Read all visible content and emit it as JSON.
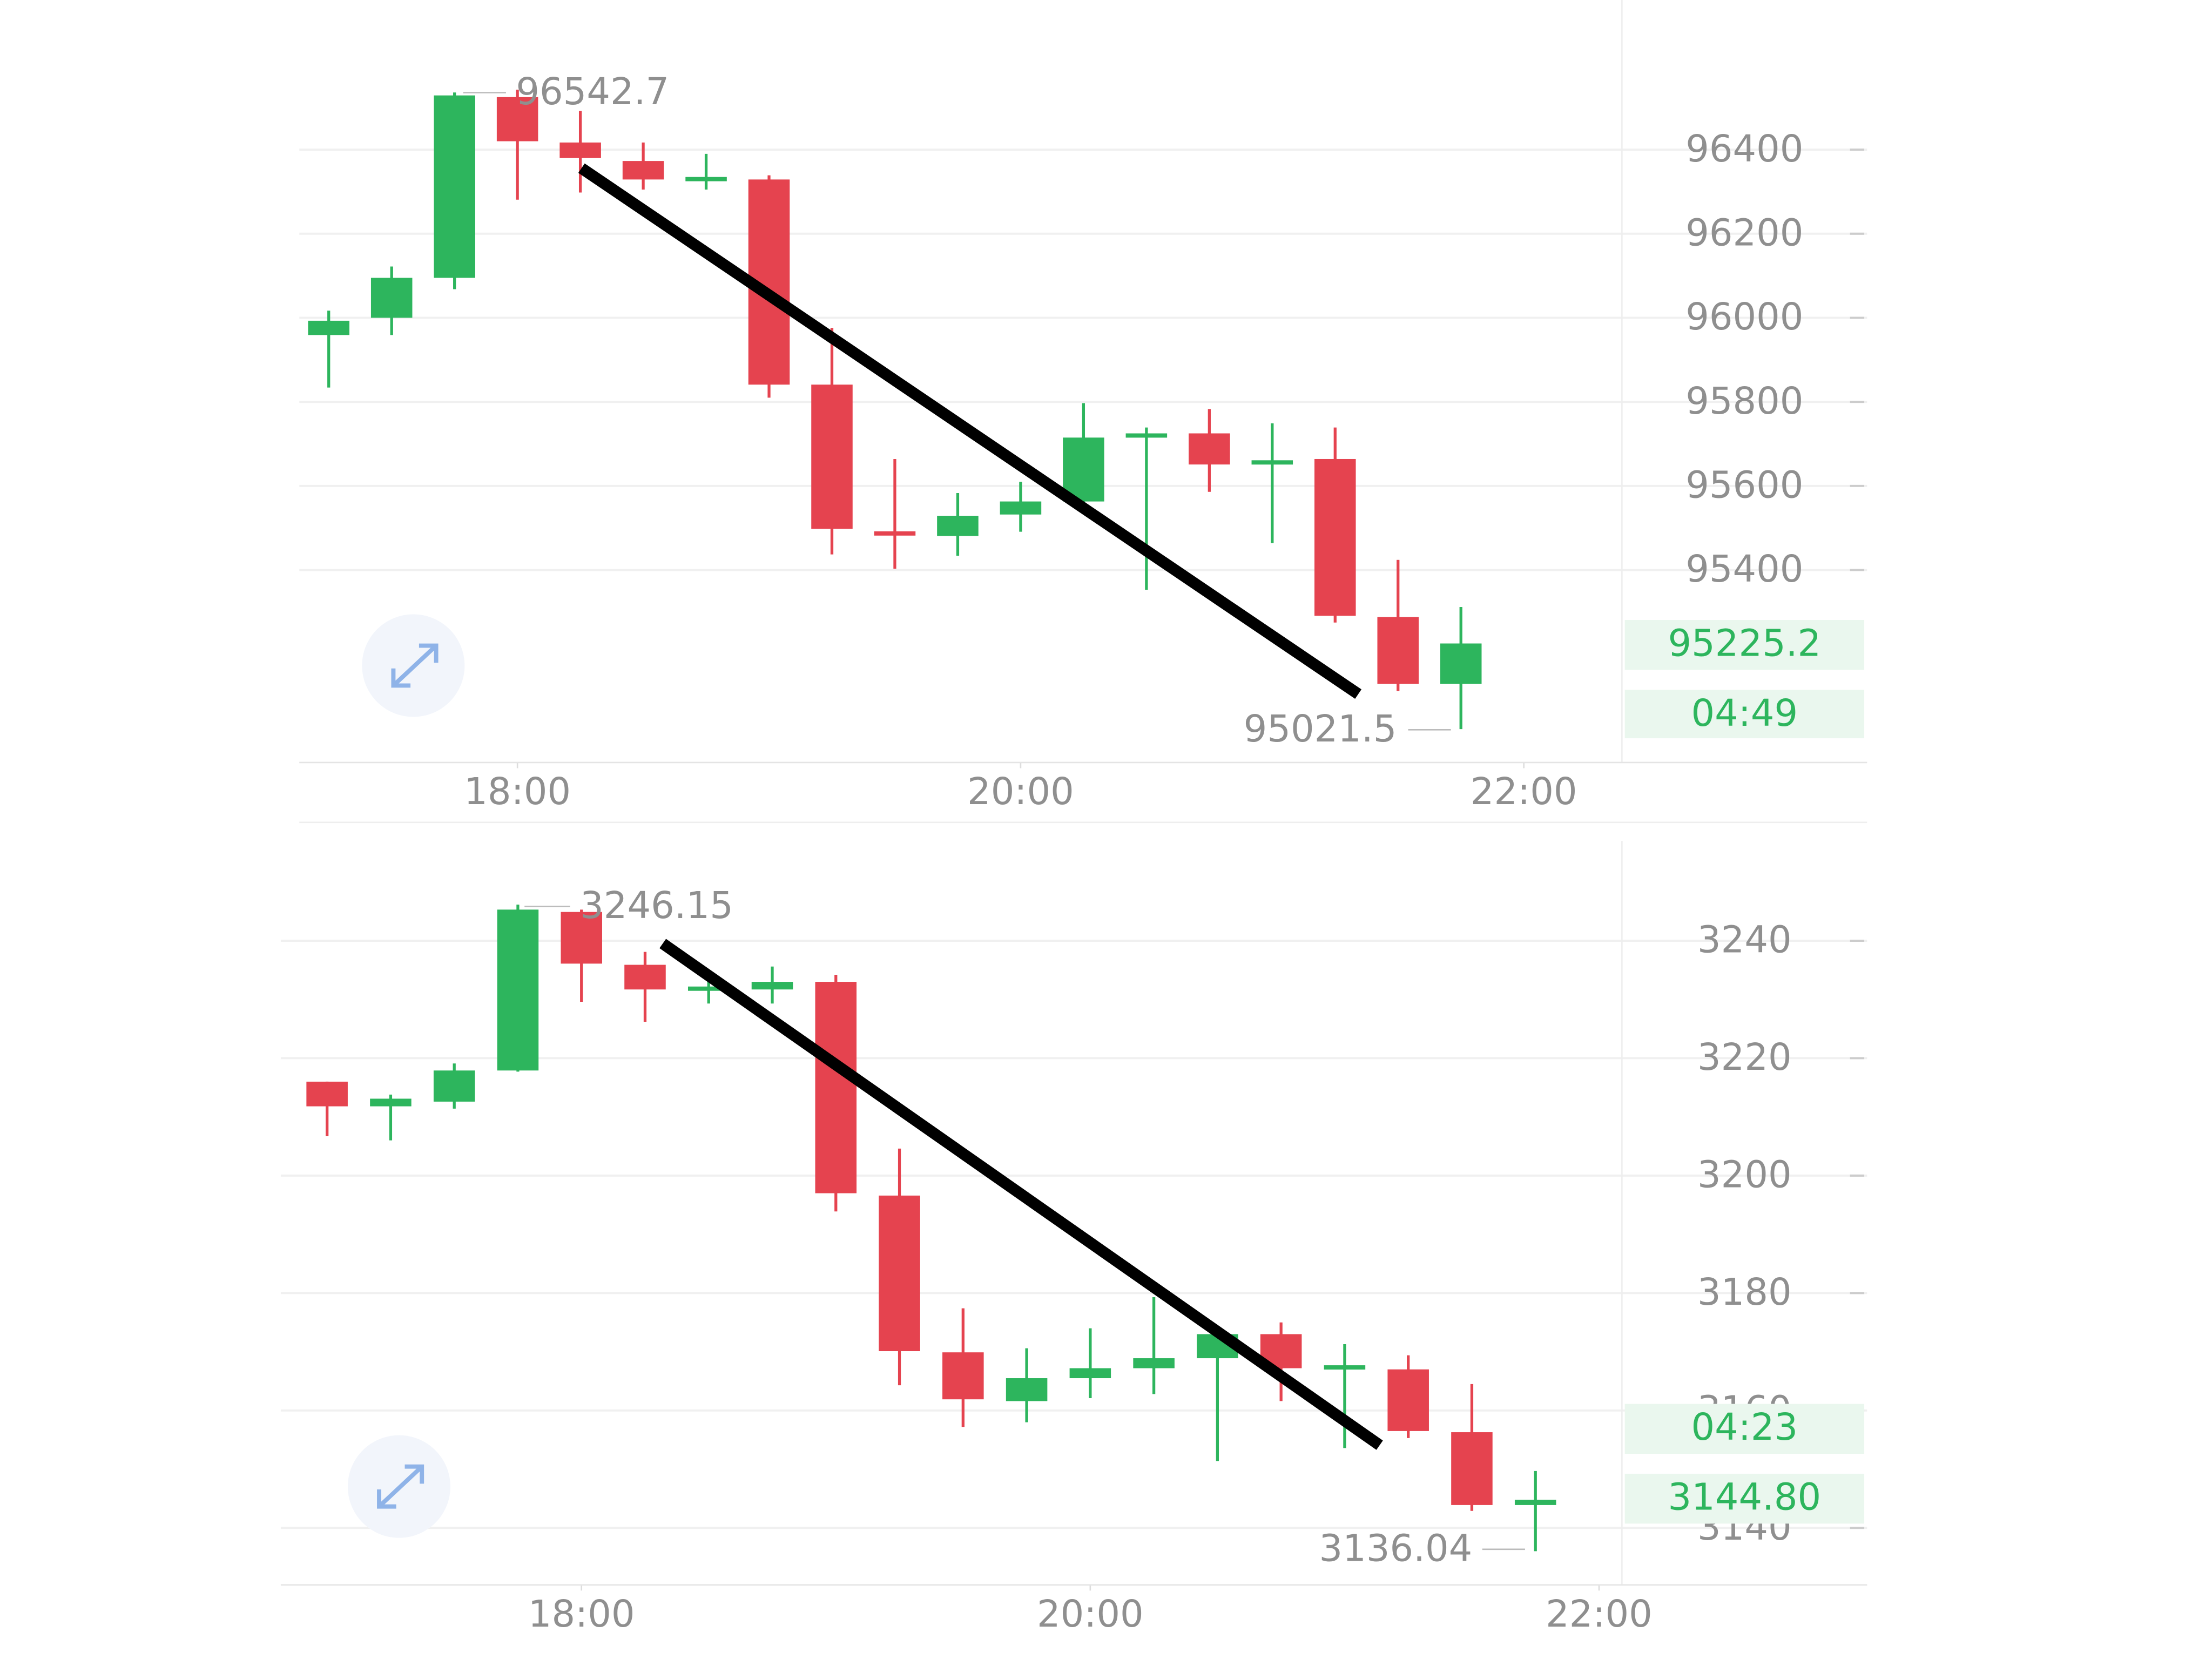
{
  "chart_data": [
    {
      "type": "candlestick",
      "up_color": "#2db55d",
      "down_color": "#e5434f",
      "x": [
        17.25,
        17.5,
        17.75,
        18,
        18.25,
        18.5,
        18.75,
        19,
        19.25,
        19.5,
        19.75,
        20,
        20.25,
        20.5,
        20.75,
        21,
        21.25,
        21.5,
        21.75
      ],
      "open": [
        95959,
        96000,
        96095,
        96525,
        96417,
        96373,
        96329,
        96329,
        95841,
        95492,
        95481,
        95532,
        95563,
        95722,
        95725,
        95651,
        95664,
        95288,
        95129
      ],
      "high": [
        96017,
        96122,
        96536,
        96542.7,
        96492,
        96417,
        96390,
        96339,
        95976,
        95664,
        95583,
        95610,
        95797,
        95739,
        95783,
        95749,
        95739,
        95424,
        95312
      ],
      "low": [
        95834,
        95959,
        96068,
        96281,
        96298,
        96305,
        96305,
        95810,
        95437,
        95403,
        95434,
        95491,
        95542,
        95353,
        95586,
        95464,
        95275,
        95112,
        95021.5
      ],
      "close": [
        95993,
        96095,
        96529,
        96420,
        96380,
        96329,
        96335,
        95841,
        95498,
        95488,
        95529,
        95563,
        95715,
        95725,
        95651,
        95661,
        95291,
        95129,
        95225.2
      ],
      "xlim": [
        17.133,
        22.39
      ],
      "xticks": [
        {
          "value": 18,
          "label": "18:00"
        },
        {
          "value": 20,
          "label": "20:00"
        },
        {
          "value": 22,
          "label": "22:00"
        }
      ],
      "ylim": [
        94942,
        96756
      ],
      "yticks": [
        95400,
        95600,
        95800,
        96000,
        96200,
        96400
      ],
      "grid": true,
      "annotations": {
        "high": "96542.7",
        "low": "95021.5",
        "last_price": "95225.2",
        "countdown": "04:49"
      }
    },
    {
      "type": "candlestick",
      "up_color": "#2db55d",
      "down_color": "#e5434f",
      "x": [
        17,
        17.25,
        17.5,
        17.75,
        18,
        18.25,
        18.5,
        18.75,
        19,
        19.25,
        19.5,
        19.75,
        20,
        20.25,
        20.5,
        20.75,
        21,
        21.25,
        21.5,
        21.75
      ],
      "open": [
        3216.0,
        3211.8,
        3212.6,
        3217.9,
        3244.9,
        3235.9,
        3231.5,
        3231.7,
        3233.0,
        3196.6,
        3169.9,
        3161.6,
        3165.5,
        3167.2,
        3168.9,
        3173.0,
        3167.2,
        3167.0,
        3156.3,
        3143.9
      ],
      "high": [
        3216.0,
        3213.8,
        3219.1,
        3246.15,
        3245.3,
        3238.1,
        3233.7,
        3235.6,
        3234.2,
        3204.6,
        3177.4,
        3170.6,
        3174.0,
        3179.3,
        3174.0,
        3175.0,
        3171.3,
        3169.4,
        3164.5,
        3149.7
      ],
      "low": [
        3206.7,
        3206.0,
        3211.4,
        3217.7,
        3229.6,
        3226.2,
        3229.3,
        3229.3,
        3193.9,
        3164.3,
        3157.2,
        3158.0,
        3162.1,
        3162.8,
        3151.4,
        3161.6,
        3153.6,
        3155.3,
        3142.9,
        3136.04
      ],
      "close": [
        3211.8,
        3213.1,
        3217.9,
        3245.3,
        3236.1,
        3231.7,
        3232.2,
        3233.0,
        3197.0,
        3170.1,
        3161.9,
        3165.5,
        3167.2,
        3168.9,
        3173.0,
        3167.2,
        3167.7,
        3156.5,
        3143.9,
        3144.8
      ],
      "xlim": [
        16.818,
        22.09
      ],
      "xticks": [
        {
          "value": 18,
          "label": "18:00"
        },
        {
          "value": 20,
          "label": "20:00"
        },
        {
          "value": 22,
          "label": "22:00"
        }
      ],
      "ylim": [
        3130.3,
        3257
      ],
      "yticks": [
        3140,
        3160,
        3180,
        3200,
        3220,
        3240
      ],
      "grid": true,
      "annotations": {
        "high": "3246.15",
        "low": "3136.04",
        "countdown": "04:23",
        "last_price": "3144.80"
      }
    }
  ]
}
